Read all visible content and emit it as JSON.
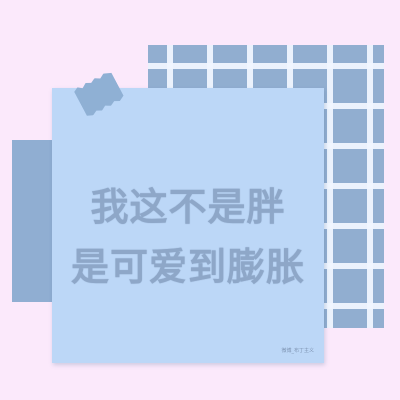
{
  "text": {
    "line1": "我这不是胖",
    "line2": "是可爱到膨胀",
    "watermark": "微博_布丁主义"
  },
  "colors": {
    "background": "#fbe9fb",
    "note": "#bcd7f7",
    "plaid": "#91aed0",
    "slab": "#90aed2",
    "text": "#8ea7c8"
  }
}
